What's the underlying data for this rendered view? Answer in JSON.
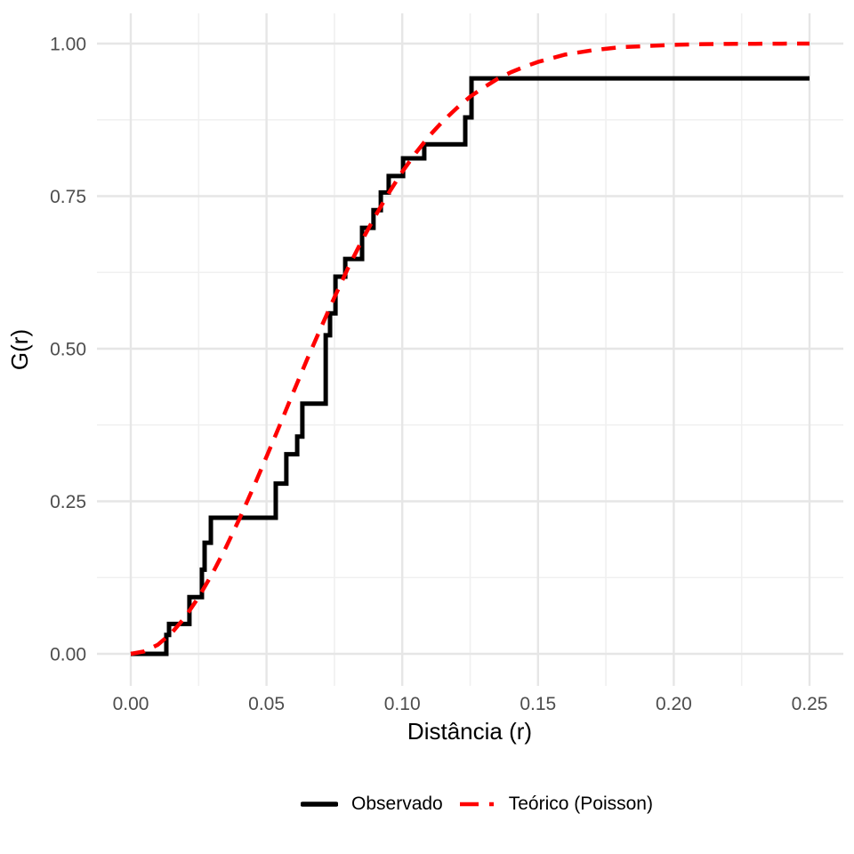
{
  "figure": {
    "background": "#FFFFFF"
  },
  "style": {
    "grid_major_color": "#E6E6E6",
    "grid_minor_color": "#F0F0F0",
    "grid_major_width": 2.4,
    "grid_minor_width": 1.6,
    "tick_label_color": "#4D4D4D",
    "axis_title_color": "#000000"
  },
  "chart_data": {
    "type": "line",
    "title": "",
    "xlabel": "Distância (r)",
    "ylabel": "G(r)",
    "xlim": [
      0,
      0.25
    ],
    "ylim": [
      0,
      1
    ],
    "grid": "major+minor",
    "legend_position": "bottom-center",
    "x_ticks": [
      0.0,
      0.05,
      0.1,
      0.15,
      0.2,
      0.25
    ],
    "x_tick_labels": [
      "0.00",
      "0.05",
      "0.10",
      "0.15",
      "0.20",
      "0.25"
    ],
    "x_minor_ticks": [
      0.025,
      0.075,
      0.125,
      0.175,
      0.225
    ],
    "y_ticks": [
      0.0,
      0.25,
      0.5,
      0.75,
      1.0
    ],
    "y_tick_labels": [
      "0.00",
      "0.25",
      "0.50",
      "0.75",
      "1.00"
    ],
    "y_minor_ticks": [
      0.125,
      0.375,
      0.625,
      0.875
    ],
    "series": [
      {
        "name": "Observado",
        "type": "step",
        "color": "#000000",
        "linewidth": 5,
        "style": "solid",
        "start": [
          0,
          0
        ],
        "end_r": 0.25,
        "steps": [
          [
            0.0131,
            0.031
          ],
          [
            0.0141,
            0.049
          ],
          [
            0.0216,
            0.093
          ],
          [
            0.0262,
            0.138
          ],
          [
            0.0272,
            0.182
          ],
          [
            0.0295,
            0.223
          ],
          [
            0.0534,
            0.279
          ],
          [
            0.0573,
            0.327
          ],
          [
            0.0613,
            0.356
          ],
          [
            0.0632,
            0.41
          ],
          [
            0.0718,
            0.522
          ],
          [
            0.0734,
            0.558
          ],
          [
            0.0754,
            0.618
          ],
          [
            0.079,
            0.647
          ],
          [
            0.0852,
            0.698
          ],
          [
            0.0894,
            0.727
          ],
          [
            0.0921,
            0.756
          ],
          [
            0.095,
            0.783
          ],
          [
            0.1003,
            0.812
          ],
          [
            0.1081,
            0.835
          ],
          [
            0.1232,
            0.879
          ],
          [
            0.1255,
            0.943
          ]
        ]
      },
      {
        "name": "Teórico (Poisson)",
        "type": "line",
        "color": "#FF0000",
        "linewidth": 4.5,
        "style": "dashed",
        "points": [
          [
            0.0,
            0.0
          ],
          [
            0.005,
            0.004
          ],
          [
            0.01,
            0.015
          ],
          [
            0.015,
            0.034
          ],
          [
            0.02,
            0.06
          ],
          [
            0.025,
            0.093
          ],
          [
            0.03,
            0.131
          ],
          [
            0.035,
            0.174
          ],
          [
            0.04,
            0.221
          ],
          [
            0.045,
            0.271
          ],
          [
            0.05,
            0.323
          ],
          [
            0.055,
            0.376
          ],
          [
            0.06,
            0.43
          ],
          [
            0.065,
            0.483
          ],
          [
            0.07,
            0.534
          ],
          [
            0.075,
            0.584
          ],
          [
            0.08,
            0.632
          ],
          [
            0.085,
            0.676
          ],
          [
            0.09,
            0.717
          ],
          [
            0.095,
            0.755
          ],
          [
            0.1,
            0.79
          ],
          [
            0.105,
            0.821
          ],
          [
            0.11,
            0.849
          ],
          [
            0.115,
            0.873
          ],
          [
            0.12,
            0.894
          ],
          [
            0.125,
            0.913
          ],
          [
            0.13,
            0.928
          ],
          [
            0.135,
            0.942
          ],
          [
            0.14,
            0.953
          ],
          [
            0.145,
            0.962
          ],
          [
            0.15,
            0.97
          ],
          [
            0.16,
            0.982
          ],
          [
            0.17,
            0.989
          ],
          [
            0.18,
            0.994
          ],
          [
            0.19,
            0.996
          ],
          [
            0.2,
            0.998
          ],
          [
            0.21,
            0.999
          ],
          [
            0.22,
            0.9995
          ],
          [
            0.23,
            0.9997
          ],
          [
            0.24,
            0.9999
          ],
          [
            0.25,
            1.0
          ]
        ]
      }
    ]
  }
}
